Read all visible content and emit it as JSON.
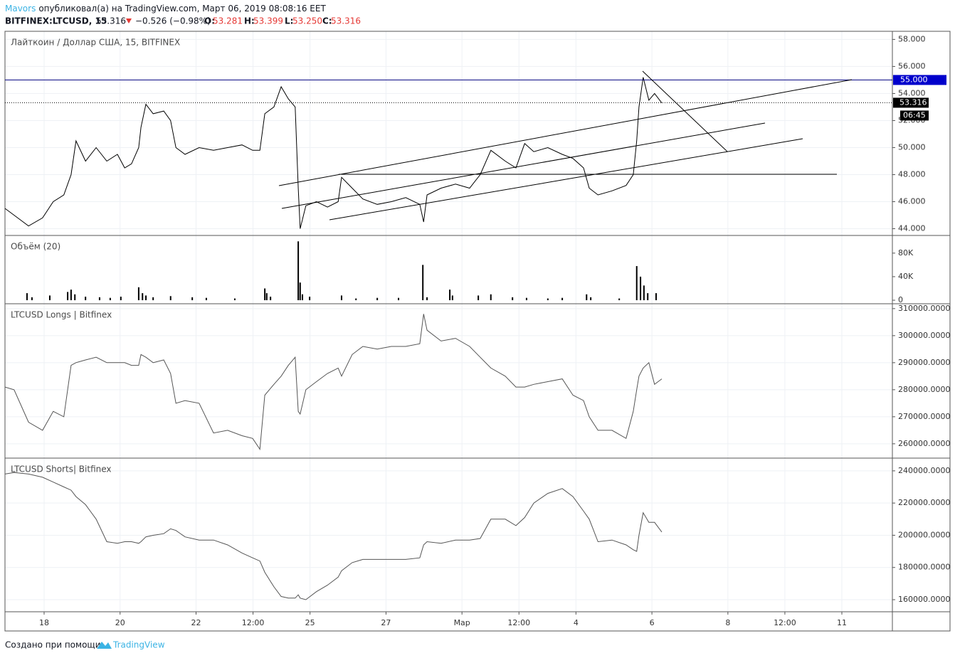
{
  "header": {
    "author": "Mavors",
    "published": "опубликовал(а) на TradingView.com, Март 06, 2019 08:08:16 EET",
    "symbol": "BITFINEX:LTCUSD, 15",
    "last": "53.316",
    "change": "−0.526 (−0.98%)",
    "ohlc": [
      {
        "key": "O:",
        "value": "53.281"
      },
      {
        "key": "H:",
        "value": "53.399"
      },
      {
        "key": "L:",
        "value": "53.250"
      },
      {
        "key": "C:",
        "value": "53.316"
      }
    ]
  },
  "footer": {
    "text": "Создано при помощи",
    "brand": "TradingView"
  },
  "chart_data": [
    {
      "type": "line",
      "title": "Лайткоин / Доллар США, 15, BITFINEX",
      "color": "#000000",
      "x": [
        16.97,
        17.21,
        17.59,
        17.96,
        18.24,
        18.52,
        18.71,
        18.84,
        19.09,
        19.37,
        19.65,
        19.93,
        20.12,
        20.3,
        20.49,
        20.55,
        20.68,
        20.87,
        21.15,
        21.33,
        21.47,
        21.71,
        22.08,
        22.46,
        22.83,
        23.21,
        23.49,
        23.68,
        23.81,
        24.05,
        24.24,
        24.43,
        24.61,
        24.69,
        24.74,
        24.89,
        25.17,
        25.46,
        25.74,
        25.83,
        26.11,
        26.39,
        26.77,
        27.14,
        27.52,
        27.89,
        27.99,
        28.08,
        28.45,
        28.83,
        29.2,
        29.48,
        29.76,
        30.14,
        30.42,
        30.65,
        30.89,
        31.26,
        31.64,
        31.92,
        32.2,
        32.35,
        32.58,
        32.95,
        33.32,
        33.51,
        33.6,
        33.66,
        33.77,
        33.92,
        34.07,
        34.26
      ],
      "values": [
        45.5,
        45,
        44.2,
        44.8,
        46,
        46.5,
        48,
        50.5,
        49,
        50,
        49,
        49.5,
        48.5,
        48.8,
        50,
        51.5,
        53.2,
        52.5,
        52.7,
        52,
        50,
        49.5,
        50,
        49.8,
        50,
        50.2,
        49.8,
        49.8,
        52.5,
        53,
        54.5,
        53.6,
        53,
        47,
        44,
        45.7,
        46,
        45.6,
        46,
        47.8,
        47,
        46.2,
        45.8,
        46,
        46.3,
        45.8,
        44.5,
        46.5,
        47,
        47.3,
        47,
        48,
        49.8,
        49,
        48.5,
        50.3,
        49.7,
        50,
        49.5,
        49.2,
        48.5,
        47,
        46.5,
        46.8,
        47.2,
        48,
        50.5,
        53,
        55.2,
        53.5,
        54,
        53.3
      ],
      "xlim": [
        16.97,
        40.33
      ],
      "ylim": [
        43.5,
        58.6
      ],
      "yticks": [
        {
          "value": 44,
          "label": "44.000"
        },
        {
          "value": 46,
          "label": "46.000"
        },
        {
          "value": 48,
          "label": "48.000"
        },
        {
          "value": 50,
          "label": "50.000"
        },
        {
          "value": 52,
          "label": "52.000"
        },
        {
          "value": 54,
          "label": "54.000"
        },
        {
          "value": 56,
          "label": "56.000"
        },
        {
          "value": 58,
          "label": "58.000"
        }
      ],
      "level": {
        "value": 55,
        "label": "55.000"
      },
      "last_price": 53.316,
      "countdown": "06:45",
      "grid": true
    },
    {
      "type": "bar",
      "title": "Объём (20)",
      "color": "#000000",
      "x": [
        17.55,
        17.68,
        18.15,
        18.62,
        18.71,
        18.81,
        19.09,
        19.46,
        19.74,
        20.02,
        20.49,
        20.59,
        20.68,
        20.87,
        21.33,
        21.9,
        22.27,
        23.02,
        23.81,
        23.86,
        23.96,
        24.69,
        24.74,
        24.8,
        24.99,
        25.83,
        26.21,
        26.77,
        27.33,
        27.97,
        28.08,
        28.68,
        28.75,
        29.43,
        29.76,
        30.33,
        30.7,
        31.26,
        31.64,
        32.28,
        32.39,
        33.14,
        33.6,
        33.7,
        33.79,
        33.89,
        34.11
      ],
      "values": [
        12000,
        5000,
        8000,
        14000,
        18000,
        10000,
        6000,
        5000,
        4000,
        6000,
        22000,
        12000,
        8000,
        5000,
        7000,
        5000,
        4000,
        3000,
        20000,
        12000,
        6000,
        100000,
        30000,
        10000,
        6000,
        8000,
        3000,
        4000,
        4000,
        60000,
        5000,
        18000,
        8000,
        8000,
        10000,
        5000,
        4000,
        3000,
        4000,
        10000,
        5000,
        3000,
        58000,
        40000,
        25000,
        12000,
        12000
      ],
      "xlim": [
        16.97,
        40.33
      ],
      "ylim": [
        -6000,
        110000
      ],
      "yticks": [
        0,
        {
          "value": 40000,
          "label": "40K"
        },
        {
          "value": 80000,
          "label": "80K"
        }
      ],
      "grid": false
    },
    {
      "type": "line",
      "title": "LTCUSD Longs | Bitfinex",
      "color": "#555555",
      "x": [
        16.97,
        17.21,
        17.59,
        17.96,
        18.24,
        18.52,
        18.71,
        18.84,
        19.09,
        19.37,
        19.65,
        19.93,
        20.12,
        20.3,
        20.49,
        20.55,
        20.68,
        20.87,
        21.15,
        21.33,
        21.47,
        21.71,
        22.08,
        22.46,
        22.83,
        23.21,
        23.49,
        23.68,
        23.81,
        24.05,
        24.24,
        24.43,
        24.61,
        24.69,
        24.74,
        24.89,
        25.17,
        25.46,
        25.74,
        25.83,
        26.11,
        26.39,
        26.77,
        27.14,
        27.52,
        27.89,
        27.99,
        28.08,
        28.45,
        28.83,
        29.2,
        29.48,
        29.76,
        30.14,
        30.42,
        30.65,
        30.89,
        31.26,
        31.64,
        31.92,
        32.2,
        32.35,
        32.58,
        32.95,
        33.32,
        33.51,
        33.6,
        33.66,
        33.77,
        33.92,
        34.07,
        34.26
      ],
      "values": [
        281000,
        280000,
        268000,
        265000,
        272000,
        270000,
        289000,
        290000,
        291000,
        292000,
        290000,
        290000,
        290000,
        289000,
        289000,
        293000,
        292000,
        290000,
        291000,
        286000,
        275000,
        276000,
        275000,
        264000,
        265000,
        263000,
        262000,
        258000,
        278000,
        282000,
        285000,
        289000,
        292000,
        272000,
        271000,
        280000,
        283000,
        286000,
        288000,
        285000,
        293000,
        296000,
        295000,
        296000,
        296000,
        297000,
        308000,
        302000,
        298000,
        299000,
        296000,
        292000,
        288000,
        285000,
        281000,
        281000,
        282000,
        283000,
        284000,
        278000,
        276000,
        270000,
        265000,
        265000,
        262000,
        272000,
        280000,
        285000,
        288000,
        290000,
        282000,
        284000
      ],
      "xlim": [
        16.97,
        40.33
      ],
      "ylim": [
        254700,
        311800
      ],
      "yticks": [
        {
          "value": 260000,
          "label": "260000.0000"
        },
        {
          "value": 270000,
          "label": "270000.0000"
        },
        {
          "value": 280000,
          "label": "280000.0000"
        },
        {
          "value": 290000,
          "label": "290000.0000"
        },
        {
          "value": 300000,
          "label": "300000.0000"
        },
        {
          "value": 310000,
          "label": "310000.0000"
        }
      ],
      "grid": true
    },
    {
      "type": "line",
      "title": "LTCUSD Shorts| Bitfinex",
      "color": "#555555",
      "x": [
        16.97,
        17.21,
        17.59,
        17.96,
        18.24,
        18.52,
        18.71,
        18.84,
        19.09,
        19.37,
        19.65,
        19.93,
        20.12,
        20.3,
        20.49,
        20.55,
        20.68,
        20.87,
        21.15,
        21.33,
        21.47,
        21.71,
        22.08,
        22.46,
        22.83,
        23.21,
        23.49,
        23.68,
        23.81,
        24.05,
        24.24,
        24.43,
        24.61,
        24.69,
        24.74,
        24.89,
        25.17,
        25.46,
        25.74,
        25.83,
        26.11,
        26.39,
        26.77,
        27.14,
        27.52,
        27.89,
        27.99,
        28.08,
        28.45,
        28.83,
        29.2,
        29.48,
        29.76,
        30.14,
        30.42,
        30.65,
        30.89,
        31.26,
        31.64,
        31.92,
        32.2,
        32.35,
        32.58,
        32.95,
        33.32,
        33.51,
        33.6,
        33.66,
        33.77,
        33.92,
        34.07,
        34.26
      ],
      "values": [
        238000,
        239000,
        238000,
        236000,
        233000,
        230000,
        228000,
        224000,
        219000,
        210000,
        196000,
        195000,
        196000,
        196000,
        195000,
        196000,
        199000,
        200000,
        201000,
        204000,
        203000,
        199000,
        197000,
        197000,
        194000,
        189000,
        186000,
        184000,
        177000,
        168000,
        162000,
        161000,
        161000,
        163000,
        161000,
        160000,
        165000,
        169000,
        174000,
        178000,
        183000,
        185000,
        185000,
        185000,
        185000,
        186000,
        194000,
        196000,
        195000,
        197000,
        197000,
        198000,
        210000,
        210000,
        206000,
        211000,
        220000,
        226000,
        229000,
        224000,
        215000,
        210000,
        196000,
        197000,
        194000,
        191000,
        190000,
        200000,
        214000,
        208000,
        208000,
        202000
      ],
      "xlim": [
        16.97,
        40.33
      ],
      "ylim": [
        152500,
        247900
      ],
      "yticks": [
        {
          "value": 160000,
          "label": "160000.0000"
        },
        {
          "value": 180000,
          "label": "180000.0000"
        },
        {
          "value": 200000,
          "label": "200000.0000"
        },
        {
          "value": 220000,
          "label": "220000.0000"
        },
        {
          "value": 240000,
          "label": "240000.0000"
        }
      ],
      "xticks": [
        18,
        20,
        22,
        {
          "value": 23.5,
          "label": "12:00"
        },
        25,
        27,
        {
          "value": 29,
          "label": "Мар"
        },
        {
          "value": 30.5,
          "label": "12:00"
        },
        {
          "value": 32,
          "label": "4"
        },
        {
          "value": 34,
          "label": "6"
        },
        {
          "value": 36,
          "label": "8"
        },
        {
          "value": 37.5,
          "label": "12:00"
        },
        {
          "value": 39,
          "label": "11"
        }
      ],
      "grid": true
    }
  ]
}
